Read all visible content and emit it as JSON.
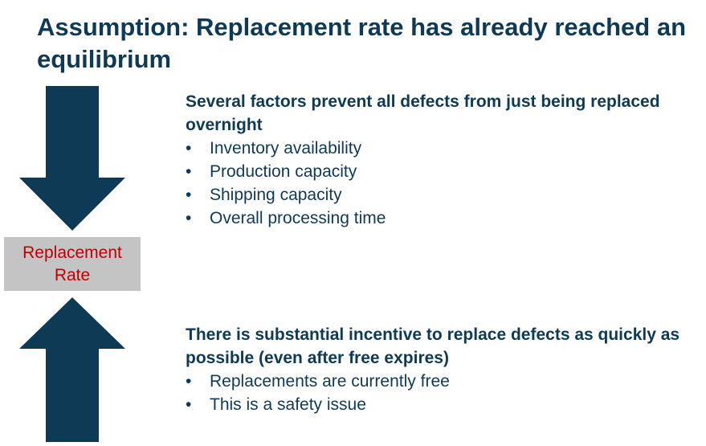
{
  "slide": {
    "title": "Assumption: Replacement rate has already reached an equilibrium",
    "center_label_line1": "Replacement",
    "center_label_line2": "Rate",
    "colors": {
      "title": "#0e3a56",
      "arrow": "#0e3a56",
      "label_text": "#c00000",
      "label_box": "#c4c4c4"
    },
    "top_block": {
      "heading": "Several factors prevent all defects from just being replaced overnight",
      "bullet_symbol": "•",
      "bullets": [
        "Inventory availability",
        "Production capacity",
        "Shipping capacity",
        "Overall processing time"
      ]
    },
    "bottom_block": {
      "heading": "There is substantial incentive to replace defects as quickly as possible (even after free expires)",
      "bullet_symbol": "•",
      "bullets": [
        "Replacements are currently free",
        "This is a safety issue"
      ]
    },
    "icons": {
      "down_arrow": "arrow-down-icon",
      "up_arrow": "arrow-up-icon"
    }
  }
}
